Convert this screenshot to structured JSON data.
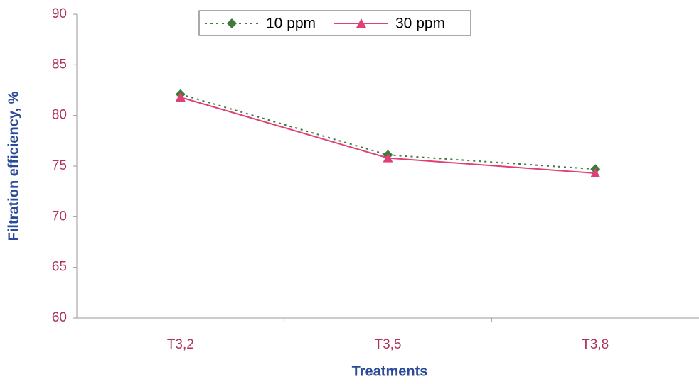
{
  "chart_data": {
    "type": "line",
    "x_label": "Treatments",
    "y_label": "Filtration efficiency, %",
    "categories": [
      "T3,2",
      "T3,5",
      "T3,8"
    ],
    "series": [
      {
        "name": "10 ppm",
        "color": "#3f7a3a",
        "values": [
          82.1,
          76.1,
          74.7
        ]
      },
      {
        "name": "30 ppm",
        "color": "#e0407a",
        "values": [
          81.8,
          75.8,
          74.3
        ]
      }
    ],
    "ylim": [
      60,
      90
    ],
    "yticks": [
      60,
      65,
      70,
      75,
      80,
      85,
      90
    ],
    "grid": false,
    "legend": "top"
  }
}
